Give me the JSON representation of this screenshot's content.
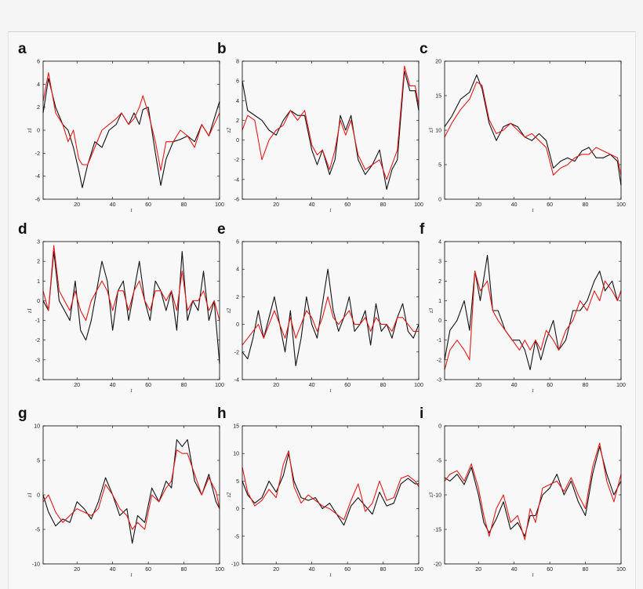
{
  "figure": {
    "panel_letters": [
      "a",
      "b",
      "c",
      "d",
      "e",
      "f",
      "g",
      "h",
      "i"
    ],
    "colors": {
      "black_series": "#111111",
      "red_series": "#e31a1c",
      "axes": "#000000"
    }
  },
  "chart_data": [
    {
      "panel": "a",
      "type": "line",
      "xlabel": "t",
      "ylabel": "z1",
      "xlim": [
        1,
        100
      ],
      "ylim": [
        -6,
        6
      ],
      "xticks": [
        20,
        40,
        60,
        80,
        100
      ],
      "yticks": [
        -6,
        -4,
        -2,
        0,
        2,
        4,
        6
      ],
      "grid": false,
      "anchors_x": [
        1,
        4,
        8,
        12,
        15,
        18,
        21,
        23,
        26,
        30,
        34,
        38,
        42,
        45,
        49,
        52,
        55,
        57,
        60,
        64,
        67,
        70,
        74,
        78,
        82,
        86,
        90,
        94,
        97,
        100
      ],
      "series": [
        {
          "color": "#111111",
          "y": [
            1.5,
            4.5,
            2.0,
            0.5,
            0.0,
            -1.5,
            -3.5,
            -5.0,
            -3.0,
            -1.0,
            -1.5,
            0.0,
            0.5,
            1.5,
            0.5,
            1.5,
            0.5,
            1.8,
            2.0,
            -2.0,
            -4.8,
            -2.5,
            -1.0,
            -0.8,
            -0.5,
            -1.0,
            0.5,
            -0.5,
            1.0,
            2.5
          ]
        },
        {
          "color": "#e31a1c",
          "y": [
            2.5,
            5.0,
            1.5,
            0.5,
            -1.0,
            0.0,
            -2.5,
            -3.0,
            -3.0,
            -1.5,
            0.0,
            0.5,
            1.0,
            1.5,
            0.5,
            1.0,
            2.0,
            3.0,
            1.5,
            -1.0,
            -3.5,
            -1.0,
            -1.0,
            0.0,
            -0.5,
            -1.5,
            0.5,
            -0.5,
            0.5,
            1.5
          ]
        }
      ]
    },
    {
      "panel": "b",
      "type": "line",
      "xlabel": "t",
      "ylabel": "z2",
      "xlim": [
        1,
        100
      ],
      "ylim": [
        -6,
        8
      ],
      "xticks": [
        20,
        40,
        60,
        80,
        100
      ],
      "yticks": [
        -6,
        -4,
        -2,
        0,
        2,
        4,
        6,
        8
      ],
      "grid": false,
      "anchors_x": [
        1,
        4,
        8,
        12,
        16,
        20,
        24,
        28,
        32,
        36,
        40,
        43,
        46,
        50,
        53,
        56,
        59,
        62,
        66,
        70,
        74,
        78,
        82,
        85,
        88,
        92,
        95,
        98,
        100
      ],
      "series": [
        {
          "color": "#111111",
          "y": [
            6.0,
            3.0,
            2.5,
            2.0,
            1.0,
            0.5,
            2.0,
            3.0,
            2.5,
            2.5,
            -1.0,
            -2.5,
            -1.0,
            -3.5,
            -2.0,
            2.5,
            1.0,
            2.5,
            -2.0,
            -3.5,
            -2.5,
            -1.0,
            -5.0,
            -3.0,
            -2.0,
            7.0,
            5.0,
            5.0,
            3.0
          ]
        },
        {
          "color": "#e31a1c",
          "y": [
            1.0,
            2.5,
            2.0,
            -2.0,
            0.0,
            1.0,
            1.5,
            3.0,
            2.0,
            3.0,
            -0.5,
            -1.5,
            -1.0,
            -3.0,
            -1.0,
            2.0,
            0.5,
            2.0,
            -1.5,
            -3.0,
            -2.5,
            -2.0,
            -4.0,
            -2.5,
            -1.0,
            7.5,
            5.5,
            5.5,
            3.5
          ]
        }
      ]
    },
    {
      "panel": "c",
      "type": "line",
      "xlabel": "t",
      "ylabel": "z3",
      "xlim": [
        1,
        100
      ],
      "ylim": [
        0,
        20
      ],
      "xticks": [
        20,
        40,
        60,
        80,
        100
      ],
      "yticks": [
        0,
        5,
        10,
        15,
        20
      ],
      "grid": false,
      "anchors_x": [
        1,
        5,
        10,
        15,
        19,
        22,
        26,
        30,
        34,
        38,
        42,
        46,
        50,
        54,
        58,
        62,
        66,
        70,
        74,
        78,
        82,
        86,
        90,
        94,
        98,
        100
      ],
      "series": [
        {
          "color": "#111111",
          "y": [
            10.5,
            12.0,
            14.5,
            15.5,
            18.0,
            16.0,
            11.0,
            8.5,
            10.5,
            11.0,
            10.5,
            9.0,
            8.5,
            9.5,
            8.5,
            4.5,
            5.5,
            6.0,
            5.5,
            7.0,
            7.5,
            6.0,
            6.0,
            6.5,
            5.5,
            2.0
          ]
        },
        {
          "color": "#e31a1c",
          "y": [
            9.0,
            11.0,
            13.0,
            14.5,
            17.0,
            16.5,
            11.5,
            9.5,
            10.0,
            11.0,
            10.0,
            9.0,
            9.5,
            8.5,
            7.5,
            3.5,
            4.5,
            5.0,
            6.0,
            6.5,
            6.5,
            7.5,
            7.0,
            6.5,
            6.0,
            3.5
          ]
        }
      ]
    },
    {
      "panel": "d",
      "type": "line",
      "xlabel": "t",
      "ylabel": "z1",
      "xlim": [
        1,
        100
      ],
      "ylim": [
        -4,
        3
      ],
      "xticks": [
        20,
        40,
        60,
        80,
        100
      ],
      "yticks": [
        -4,
        -3,
        -2,
        -1,
        0,
        1,
        2,
        3
      ],
      "grid": false,
      "anchors_x": [
        1,
        4,
        7,
        10,
        13,
        16,
        19,
        22,
        25,
        28,
        31,
        34,
        37,
        40,
        43,
        46,
        49,
        52,
        55,
        58,
        61,
        64,
        67,
        70,
        73,
        76,
        79,
        82,
        85,
        88,
        91,
        94,
        97,
        100
      ],
      "series": [
        {
          "color": "#111111",
          "y": [
            0.0,
            -0.5,
            2.5,
            0.0,
            -0.5,
            -1.0,
            1.0,
            -1.5,
            -2.0,
            -1.0,
            0.5,
            2.0,
            1.0,
            -1.5,
            0.5,
            1.0,
            -1.0,
            0.5,
            2.0,
            0.0,
            -1.0,
            1.0,
            0.5,
            -0.5,
            0.5,
            -1.5,
            2.5,
            -1.0,
            0.0,
            -0.5,
            1.5,
            -1.0,
            0.0,
            -3.2
          ]
        },
        {
          "color": "#e31a1c",
          "y": [
            0.5,
            -0.5,
            2.8,
            0.5,
            0.0,
            -0.5,
            0.5,
            -0.5,
            -1.0,
            0.0,
            0.5,
            1.0,
            0.5,
            -0.5,
            0.5,
            0.5,
            -0.5,
            0.5,
            1.0,
            0.0,
            -0.5,
            0.5,
            0.5,
            0.0,
            0.5,
            -0.5,
            1.5,
            -0.5,
            0.0,
            0.0,
            0.5,
            -0.5,
            0.0,
            -1.0
          ]
        }
      ]
    },
    {
      "panel": "e",
      "type": "line",
      "xlabel": "t",
      "ylabel": "z2",
      "xlim": [
        1,
        100
      ],
      "ylim": [
        -4,
        6
      ],
      "xticks": [
        20,
        40,
        60,
        80,
        100
      ],
      "yticks": [
        -4,
        -2,
        0,
        2,
        4,
        6
      ],
      "grid": false,
      "anchors_x": [
        1,
        4,
        7,
        10,
        13,
        16,
        19,
        22,
        25,
        28,
        31,
        34,
        37,
        40,
        43,
        46,
        49,
        52,
        55,
        58,
        61,
        64,
        67,
        70,
        73,
        76,
        79,
        82,
        85,
        88,
        91,
        94,
        97,
        100
      ],
      "series": [
        {
          "color": "#111111",
          "y": [
            -2.0,
            -2.5,
            -1.0,
            1.0,
            -1.0,
            0.5,
            2.0,
            0.0,
            -2.0,
            1.0,
            -3.0,
            -1.0,
            2.0,
            0.0,
            -1.0,
            1.5,
            4.0,
            1.0,
            -0.5,
            0.5,
            2.0,
            -0.5,
            0.0,
            1.0,
            -1.5,
            1.5,
            -0.5,
            0.0,
            -1.0,
            0.5,
            1.5,
            -0.5,
            -1.0,
            0.0
          ]
        },
        {
          "color": "#e31a1c",
          "y": [
            -1.5,
            -1.0,
            -0.5,
            0.0,
            -1.0,
            0.0,
            1.0,
            0.0,
            -1.0,
            0.5,
            -1.0,
            0.0,
            1.0,
            0.5,
            -0.5,
            0.5,
            2.0,
            0.5,
            0.0,
            0.5,
            1.0,
            0.0,
            0.0,
            0.5,
            -0.5,
            0.5,
            0.0,
            0.0,
            -0.5,
            0.5,
            0.5,
            0.0,
            -0.5,
            -0.5
          ]
        }
      ]
    },
    {
      "panel": "f",
      "type": "line",
      "xlabel": "t",
      "ylabel": "z3",
      "xlim": [
        1,
        100
      ],
      "ylim": [
        -3,
        4
      ],
      "xticks": [
        20,
        40,
        60,
        80,
        100
      ],
      "yticks": [
        -3,
        -2,
        -1,
        0,
        1,
        2,
        3,
        4
      ],
      "grid": false,
      "anchors_x": [
        1,
        4,
        8,
        12,
        15,
        18,
        21,
        25,
        28,
        31,
        35,
        39,
        43,
        46,
        49,
        52,
        55,
        58,
        62,
        65,
        69,
        73,
        77,
        81,
        85,
        88,
        91,
        95,
        98,
        100
      ],
      "series": [
        {
          "color": "#111111",
          "y": [
            -2.0,
            -0.5,
            0.0,
            1.0,
            -0.5,
            2.5,
            1.0,
            3.3,
            0.5,
            0.5,
            -0.5,
            -1.0,
            -1.0,
            -1.5,
            -2.5,
            -1.0,
            -2.0,
            -1.0,
            0.0,
            -1.5,
            -1.0,
            0.5,
            0.5,
            1.0,
            2.0,
            2.5,
            1.5,
            2.0,
            1.0,
            1.5
          ]
        },
        {
          "color": "#e31a1c",
          "y": [
            -2.5,
            -1.5,
            -1.0,
            -1.5,
            -2.0,
            2.5,
            1.5,
            2.0,
            0.5,
            0.0,
            -0.5,
            -1.0,
            -1.5,
            -1.0,
            -1.5,
            -1.0,
            -1.5,
            -0.5,
            -1.0,
            -1.5,
            -0.5,
            0.0,
            1.0,
            0.5,
            1.5,
            1.0,
            2.0,
            1.5,
            1.0,
            1.5
          ]
        }
      ]
    },
    {
      "panel": "g",
      "type": "line",
      "xlabel": "t",
      "ylabel": "z1",
      "xlim": [
        1,
        100
      ],
      "ylim": [
        -10,
        10
      ],
      "xticks": [
        20,
        40,
        60,
        80,
        100
      ],
      "yticks": [
        -10,
        -5,
        0,
        5,
        10
      ],
      "grid": false,
      "anchors_x": [
        1,
        4,
        8,
        12,
        16,
        20,
        24,
        28,
        32,
        36,
        40,
        44,
        48,
        51,
        54,
        58,
        62,
        66,
        70,
        73,
        76,
        79,
        82,
        86,
        90,
        94,
        98,
        100
      ],
      "series": [
        {
          "color": "#111111",
          "y": [
            0.0,
            -2.5,
            -4.5,
            -3.5,
            -4.0,
            -1.0,
            -2.0,
            -3.5,
            -1.0,
            2.5,
            0.0,
            -3.0,
            -2.0,
            -7.0,
            -3.0,
            -4.0,
            1.0,
            -1.0,
            2.0,
            1.0,
            8.0,
            7.0,
            8.0,
            2.0,
            0.0,
            3.0,
            -1.0,
            -2.0
          ]
        },
        {
          "color": "#e31a1c",
          "y": [
            -1.0,
            0.0,
            -2.5,
            -4.0,
            -3.0,
            -2.0,
            -2.5,
            -3.0,
            -2.0,
            1.5,
            0.0,
            -2.0,
            -3.0,
            -5.0,
            -4.0,
            -5.0,
            0.0,
            -1.0,
            1.0,
            2.0,
            6.5,
            6.0,
            6.0,
            3.0,
            0.0,
            2.5,
            0.5,
            -2.0
          ]
        }
      ]
    },
    {
      "panel": "h",
      "type": "line",
      "xlabel": "t",
      "ylabel": "z2",
      "xlim": [
        1,
        100
      ],
      "ylim": [
        -10,
        15
      ],
      "xticks": [
        20,
        40,
        60,
        80,
        100
      ],
      "yticks": [
        -10,
        -5,
        0,
        5,
        10,
        15
      ],
      "grid": false,
      "anchors_x": [
        1,
        4,
        8,
        12,
        16,
        20,
        24,
        27,
        30,
        34,
        38,
        42,
        46,
        50,
        54,
        58,
        62,
        66,
        70,
        74,
        78,
        82,
        86,
        90,
        94,
        98,
        100
      ],
      "series": [
        {
          "color": "#111111",
          "y": [
            5.0,
            2.5,
            1.0,
            2.0,
            5.0,
            3.0,
            6.0,
            10.0,
            5.0,
            2.0,
            1.5,
            2.0,
            0.0,
            1.0,
            -1.0,
            -3.0,
            0.5,
            2.0,
            0.5,
            -1.0,
            3.0,
            0.5,
            1.0,
            4.5,
            5.5,
            4.5,
            4.5
          ]
        },
        {
          "color": "#e31a1c",
          "y": [
            7.5,
            3.0,
            0.5,
            1.5,
            3.5,
            2.0,
            8.0,
            10.5,
            4.0,
            1.0,
            2.5,
            1.5,
            0.5,
            0.0,
            -1.0,
            -2.0,
            1.5,
            4.5,
            -0.5,
            1.0,
            5.0,
            1.5,
            2.0,
            5.5,
            6.0,
            5.0,
            4.0
          ]
        }
      ]
    },
    {
      "panel": "i",
      "type": "line",
      "xlabel": "t",
      "ylabel": "z3",
      "xlim": [
        1,
        100
      ],
      "ylim": [
        -20,
        0
      ],
      "xticks": [
        20,
        40,
        60,
        80,
        100
      ],
      "yticks": [
        -20,
        -15,
        -10,
        -5,
        0
      ],
      "grid": false,
      "anchors_x": [
        1,
        4,
        8,
        12,
        16,
        20,
        23,
        26,
        30,
        34,
        38,
        42,
        46,
        49,
        52,
        56,
        60,
        64,
        68,
        72,
        76,
        80,
        84,
        88,
        92,
        96,
        100
      ],
      "series": [
        {
          "color": "#111111",
          "y": [
            -7.5,
            -8.0,
            -7.0,
            -8.5,
            -6.0,
            -10.0,
            -14.0,
            -15.5,
            -13.5,
            -11.0,
            -15.0,
            -14.0,
            -16.0,
            -13.0,
            -13.0,
            -10.0,
            -9.0,
            -7.0,
            -10.0,
            -8.0,
            -11.0,
            -13.0,
            -7.0,
            -3.0,
            -7.0,
            -10.0,
            -8.0
          ]
        },
        {
          "color": "#e31a1c",
          "y": [
            -8.0,
            -7.0,
            -6.5,
            -8.0,
            -5.5,
            -9.0,
            -13.0,
            -16.0,
            -12.0,
            -10.0,
            -14.0,
            -13.0,
            -16.5,
            -12.0,
            -14.0,
            -9.0,
            -8.5,
            -8.0,
            -9.5,
            -7.5,
            -10.0,
            -12.0,
            -6.0,
            -2.5,
            -8.0,
            -11.0,
            -7.0
          ]
        }
      ]
    }
  ]
}
